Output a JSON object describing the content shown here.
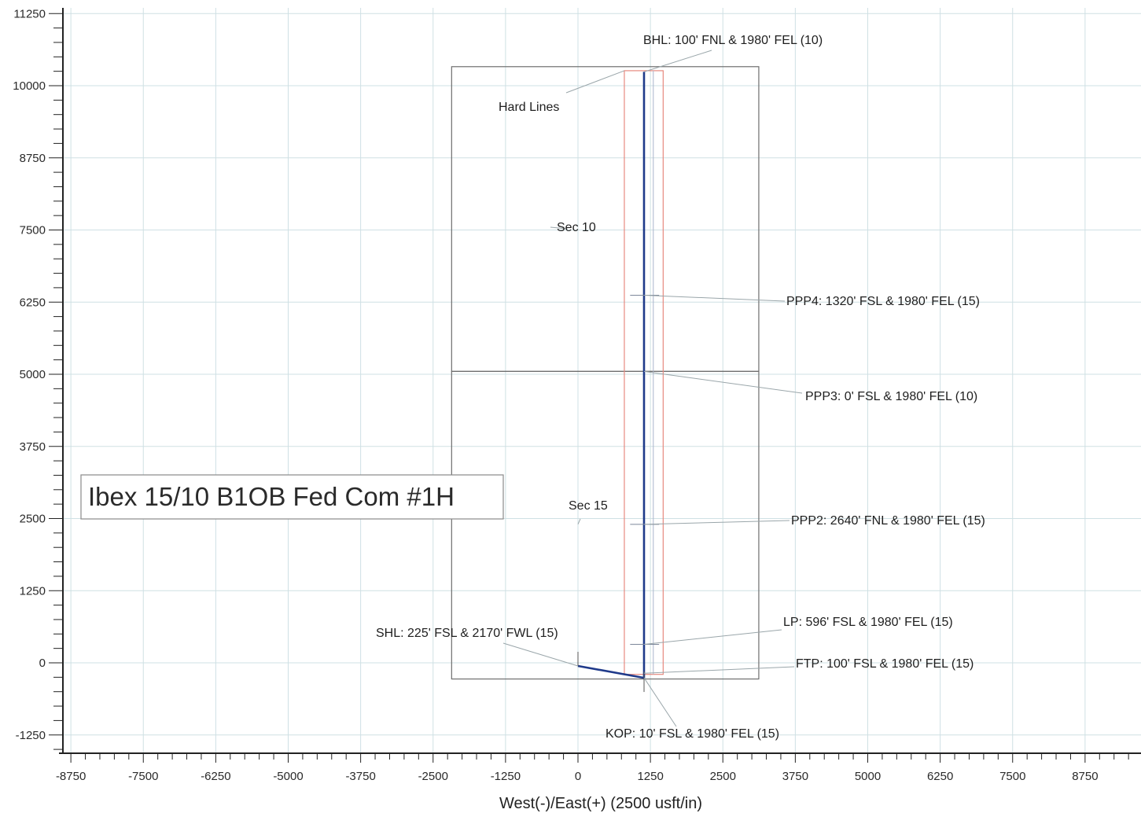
{
  "chart_data": {
    "type": "line",
    "title": "Ibex 15/10 B1OB Fed Com #1H",
    "xlabel": "West(-)/East(+) (2500 usft/in)",
    "ylabel": "",
    "xlim": [
      -9000,
      9750
    ],
    "ylim": [
      -1550,
      11420
    ],
    "xticks": [
      -8750,
      -7500,
      -6250,
      -5000,
      -3750,
      -2500,
      -1250,
      0,
      1250,
      2500,
      3750,
      5000,
      6250,
      7500,
      8750
    ],
    "xtick_labels": [
      "-8750",
      "-7500",
      "-6250",
      "-5000",
      "-3750",
      "-2500",
      "-1250",
      "0",
      "1250",
      "2500",
      "3750",
      "5000",
      "6250",
      "7500",
      "8750"
    ],
    "yticks": [
      11250,
      10000,
      8750,
      7500,
      6250,
      5000,
      3750,
      2500,
      1250,
      0,
      -1250
    ],
    "ytick_labels": [
      "11250",
      "10000",
      "8750",
      "7500",
      "6250",
      "5000",
      "3750",
      "2500",
      "1250",
      "0",
      "-1250"
    ],
    "grid": true,
    "series": [
      {
        "name": "",
        "color": "#1f3a8a",
        "points": [
          [
            0,
            -55
          ],
          [
            1140,
            -260
          ],
          [
            1140,
            10240
          ]
        ]
      }
    ],
    "boxes": [
      {
        "label": "Sec 10",
        "x": [
          -2180,
          3120
        ],
        "y": [
          5050,
          10330
        ],
        "color": "#6e6e6e"
      },
      {
        "label": "Sec 15",
        "x": [
          -2180,
          3120
        ],
        "y": [
          -280,
          5050
        ],
        "color": "#6e6e6e"
      },
      {
        "label": "Hard Lines",
        "x": [
          800,
          1470
        ],
        "y": [
          -200,
          10260
        ],
        "color": "#e7897f"
      }
    ],
    "annotations": [
      {
        "text": "BHL: 100' FNL & 1980' FEL (10)",
        "x": 1140,
        "y": 10240
      },
      {
        "text": "Hard Lines",
        "x": 800,
        "y": 10260
      },
      {
        "text": "Sec 10",
        "x": -180,
        "y": 7520
      },
      {
        "text": "PPP4: 1320' FSL & 1980' FEL (15)",
        "x": 1140,
        "y": 6370
      },
      {
        "text": "PPP3: 0' FSL & 1980' FEL (10)",
        "x": 1140,
        "y": 5050
      },
      {
        "text": "Sec 15",
        "x": 0,
        "y": 2400
      },
      {
        "text": "PPP2: 2640' FNL & 1980' FEL (15)",
        "x": 1140,
        "y": 2400
      },
      {
        "text": "LP: 596' FSL & 1980' FEL (15)",
        "x": 1140,
        "y": 320
      },
      {
        "text": "SHL: 225' FSL & 2170' FWL (15)",
        "x": 0,
        "y": -55
      },
      {
        "text": "FTP: 100' FSL & 1980' FEL (15)",
        "x": 1140,
        "y": -180
      },
      {
        "text": "KOP: 10' FSL & 1980' FEL (15)",
        "x": 1140,
        "y": -260
      }
    ]
  }
}
